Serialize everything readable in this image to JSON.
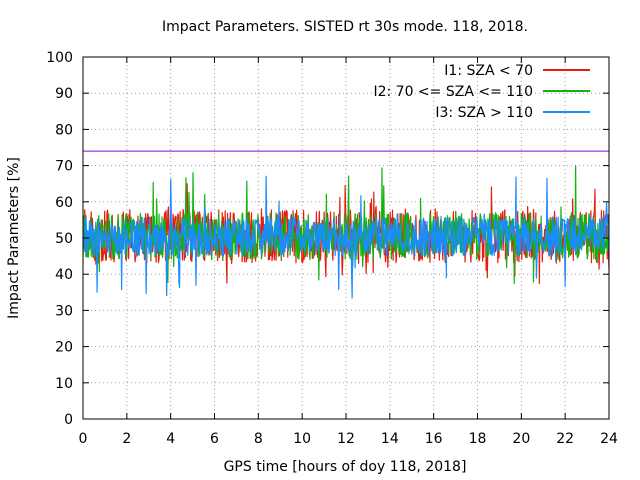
{
  "chart_data": {
    "type": "line",
    "title": "Impact Parameters. SISTED rt 30s mode. 118, 2018.",
    "xlabel": "GPS time [hours of doy 118, 2018]",
    "ylabel": "Impact Parameters [%]",
    "xlim": [
      0,
      24
    ],
    "ylim": [
      0,
      100
    ],
    "xticks": [
      0,
      2,
      4,
      6,
      8,
      10,
      12,
      14,
      16,
      18,
      20,
      22,
      24
    ],
    "yticks": [
      0,
      10,
      20,
      30,
      40,
      50,
      60,
      70,
      80,
      90,
      100
    ],
    "grid": true,
    "legend_position": "top-right",
    "reference_line": {
      "y": 74,
      "color": "#9400d3"
    },
    "series": [
      {
        "name": "I1: SZA < 70",
        "color": "#e51e10",
        "x_range": [
          0,
          24
        ],
        "mean": 50,
        "typical_min": 43,
        "typical_max": 58,
        "extreme_min": 37,
        "extreme_max": 65
      },
      {
        "name": "I2: 70 <= SZA <= 110",
        "color": "#11b411",
        "x_range": [
          0,
          24
        ],
        "mean": 50,
        "typical_min": 44,
        "typical_max": 57,
        "extreme_min": 37,
        "extreme_max": 70
      },
      {
        "name": "I3: SZA > 110",
        "color": "#1a8cff",
        "x_range": [
          0,
          24
        ],
        "mean": 50,
        "typical_min": 45,
        "typical_max": 56,
        "extreme_min": 33,
        "extreme_max": 68
      }
    ]
  }
}
